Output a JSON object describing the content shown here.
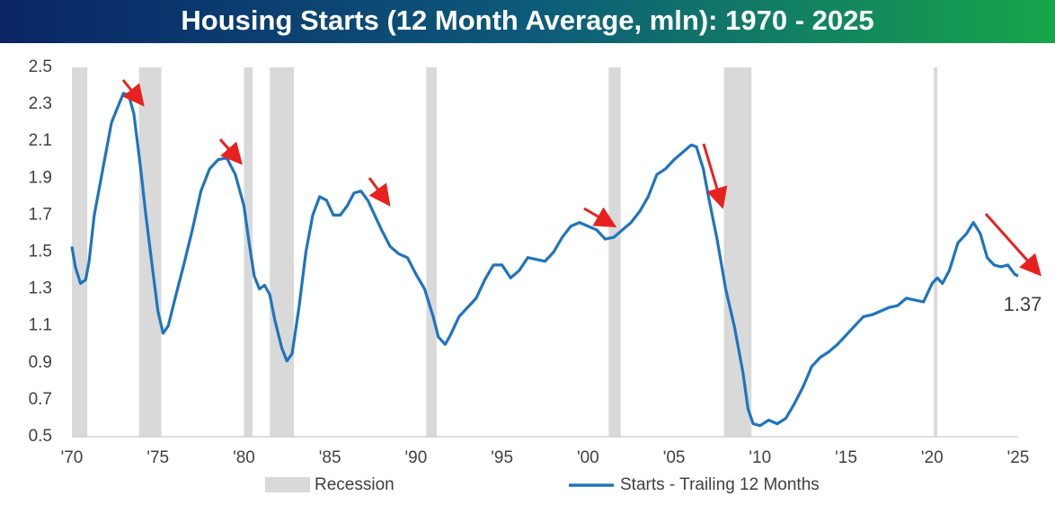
{
  "chart_data": {
    "type": "line",
    "title": "Housing Starts (12 Month Average, mln): 1970 - 2025",
    "x": [
      1970.0,
      1970.2,
      1970.5,
      1970.8,
      1971.0,
      1971.3,
      1971.7,
      1972.0,
      1972.3,
      1972.6,
      1973.0,
      1973.3,
      1973.6,
      1974.0,
      1974.3,
      1974.7,
      1975.0,
      1975.3,
      1975.6,
      1976.0,
      1976.5,
      1977.0,
      1977.5,
      1978.0,
      1978.5,
      1979.0,
      1979.5,
      1980.0,
      1980.3,
      1980.6,
      1980.9,
      1981.2,
      1981.5,
      1981.8,
      1982.2,
      1982.5,
      1982.8,
      1983.2,
      1983.6,
      1984.0,
      1984.4,
      1984.8,
      1985.2,
      1985.6,
      1986.0,
      1986.4,
      1986.8,
      1987.2,
      1987.6,
      1988.0,
      1988.5,
      1989.0,
      1989.5,
      1990.0,
      1990.5,
      1991.0,
      1991.3,
      1991.7,
      1992.0,
      1992.5,
      1993.0,
      1993.5,
      1994.0,
      1994.5,
      1995.0,
      1995.5,
      1996.0,
      1996.5,
      1997.0,
      1997.5,
      1998.0,
      1998.5,
      1999.0,
      1999.5,
      2000.0,
      2000.5,
      2001.0,
      2001.5,
      2002.0,
      2002.5,
      2003.0,
      2003.5,
      2004.0,
      2004.5,
      2005.0,
      2005.5,
      2006.0,
      2006.3,
      2006.7,
      2007.0,
      2007.5,
      2008.0,
      2008.5,
      2009.0,
      2009.3,
      2009.6,
      2010.0,
      2010.5,
      2011.0,
      2011.5,
      2012.0,
      2012.5,
      2013.0,
      2013.5,
      2014.0,
      2014.5,
      2015.0,
      2015.5,
      2016.0,
      2016.5,
      2017.0,
      2017.5,
      2018.0,
      2018.5,
      2019.0,
      2019.5,
      2020.0,
      2020.3,
      2020.6,
      2021.0,
      2021.5,
      2022.0,
      2022.4,
      2022.8,
      2023.2,
      2023.6,
      2024.0,
      2024.4,
      2024.8,
      2025.0
    ],
    "series": [
      {
        "name": "Starts - Trailing 12 Months",
        "color": "#1f74bd",
        "values": [
          1.53,
          1.42,
          1.33,
          1.35,
          1.45,
          1.7,
          1.9,
          2.05,
          2.2,
          2.27,
          2.36,
          2.35,
          2.25,
          1.95,
          1.7,
          1.4,
          1.18,
          1.06,
          1.1,
          1.25,
          1.43,
          1.62,
          1.83,
          1.95,
          2.0,
          2.01,
          1.92,
          1.75,
          1.55,
          1.37,
          1.3,
          1.32,
          1.27,
          1.13,
          0.98,
          0.91,
          0.95,
          1.2,
          1.5,
          1.7,
          1.8,
          1.78,
          1.7,
          1.7,
          1.75,
          1.82,
          1.83,
          1.78,
          1.7,
          1.62,
          1.53,
          1.49,
          1.47,
          1.38,
          1.3,
          1.15,
          1.04,
          1.0,
          1.05,
          1.15,
          1.2,
          1.25,
          1.35,
          1.43,
          1.43,
          1.36,
          1.4,
          1.47,
          1.46,
          1.45,
          1.5,
          1.58,
          1.64,
          1.66,
          1.64,
          1.62,
          1.57,
          1.58,
          1.62,
          1.66,
          1.72,
          1.8,
          1.92,
          1.95,
          2.0,
          2.04,
          2.08,
          2.07,
          1.95,
          1.8,
          1.57,
          1.3,
          1.1,
          0.85,
          0.65,
          0.57,
          0.56,
          0.59,
          0.57,
          0.6,
          0.68,
          0.77,
          0.88,
          0.93,
          0.96,
          1.0,
          1.05,
          1.1,
          1.15,
          1.16,
          1.18,
          1.2,
          1.21,
          1.25,
          1.24,
          1.23,
          1.33,
          1.36,
          1.33,
          1.4,
          1.55,
          1.6,
          1.66,
          1.6,
          1.47,
          1.43,
          1.42,
          1.43,
          1.38,
          1.37
        ]
      }
    ],
    "last_value_label": "1.37",
    "recession": {
      "name": "Recession",
      "color": "#d9d9d9",
      "ranges": [
        [
          1969.9,
          1970.9
        ],
        [
          1973.9,
          1975.2
        ],
        [
          1980.0,
          1980.5
        ],
        [
          1981.5,
          1982.9
        ],
        [
          1990.6,
          1991.2
        ],
        [
          2001.2,
          2001.9
        ],
        [
          2007.9,
          2009.5
        ],
        [
          2020.1,
          2020.3
        ]
      ]
    },
    "xlim": [
      1970,
      2025
    ],
    "ylim": [
      0.5,
      2.5
    ],
    "yticks": [
      0.5,
      0.7,
      0.9,
      1.1,
      1.3,
      1.5,
      1.7,
      1.9,
      2.1,
      2.3,
      2.5
    ],
    "xticks": [
      {
        "value": 1970,
        "label": "'70"
      },
      {
        "value": 1975,
        "label": "'75"
      },
      {
        "value": 1980,
        "label": "'80"
      },
      {
        "value": 1985,
        "label": "'85"
      },
      {
        "value": 1990,
        "label": "'90"
      },
      {
        "value": 1995,
        "label": "'95"
      },
      {
        "value": 2000,
        "label": "'00"
      },
      {
        "value": 2005,
        "label": "'05"
      },
      {
        "value": 2010,
        "label": "'10"
      },
      {
        "value": 2015,
        "label": "'15"
      },
      {
        "value": 2020,
        "label": "'20"
      },
      {
        "value": 2025,
        "label": "'25"
      }
    ]
  }
}
